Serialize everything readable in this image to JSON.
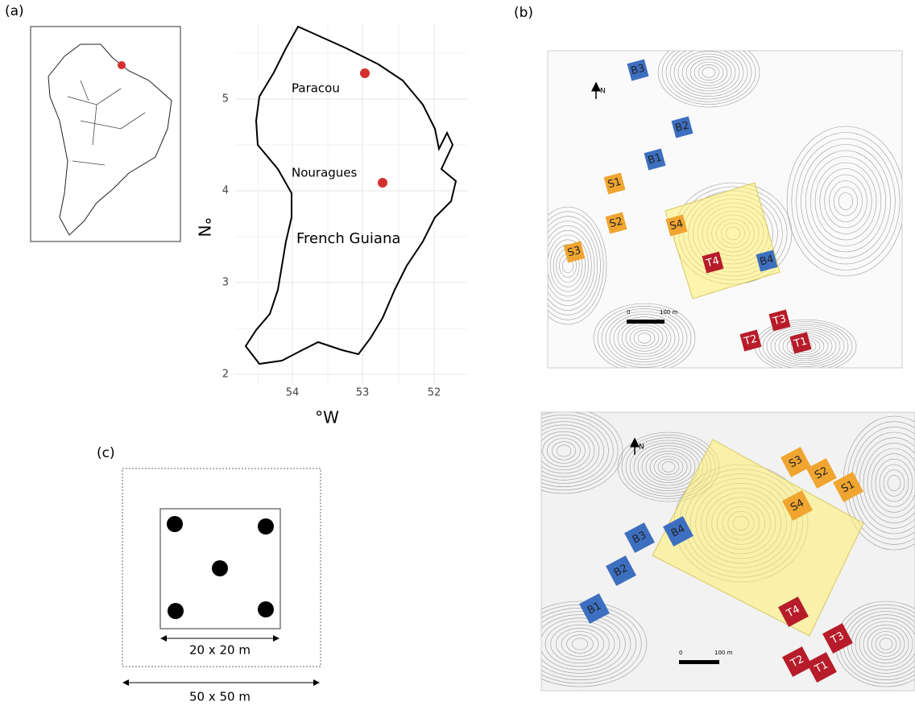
{
  "panels": {
    "a": {
      "label": "(a)",
      "sites": [
        "Paracou",
        "Nouragues"
      ],
      "region": "French Guiana",
      "y_axis": {
        "label": "°N",
        "ticks": [
          5,
          4,
          3,
          2
        ]
      },
      "x_axis": {
        "label": "°W",
        "ticks": [
          54,
          53,
          52
        ]
      }
    },
    "b": {
      "label": "(b)",
      "maps": [
        {
          "north": "N",
          "scale": [
            "0",
            "100 m"
          ],
          "plots": [
            "B3",
            "B2",
            "B1",
            "S1",
            "S2",
            "S4",
            "S3",
            "T4",
            "B4",
            "T3",
            "T2",
            "T1"
          ]
        },
        {
          "north": "N",
          "scale": [
            "0",
            "100 m"
          ],
          "plots": [
            "S3",
            "S2",
            "S1",
            "S4",
            "B3",
            "B4",
            "B2",
            "B1",
            "T4",
            "T3",
            "T2",
            "T1"
          ]
        }
      ]
    },
    "c": {
      "label": "(c)",
      "inner": "20 x 20 m",
      "outer": "50 x 50 m"
    }
  }
}
